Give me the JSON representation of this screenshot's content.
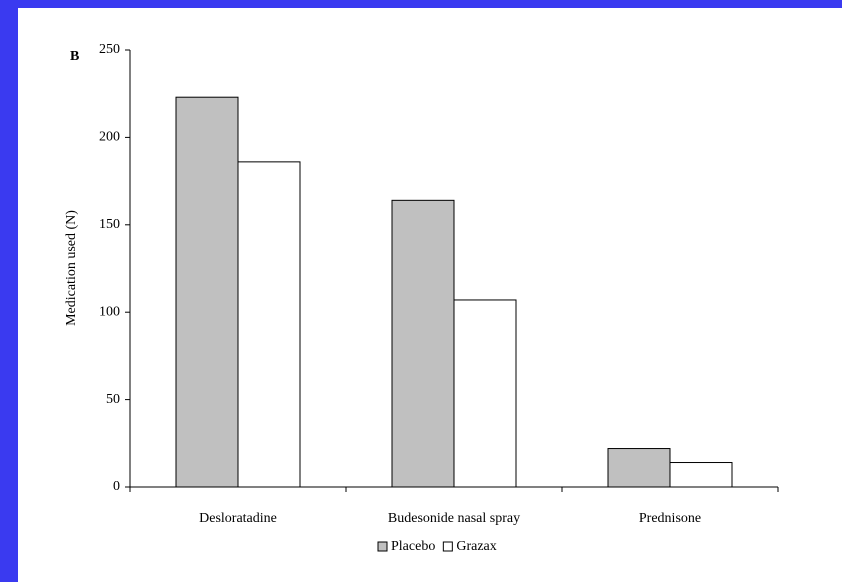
{
  "chart_data": {
    "type": "bar",
    "panel_label": "B",
    "ylabel": "Medication used (N)",
    "categories": [
      "Desloratadine",
      "Budesonide nasal spray",
      "Prednisone"
    ],
    "series": [
      {
        "name": "Placebo",
        "color": "#c0c0c0",
        "values": [
          223,
          164,
          22
        ]
      },
      {
        "name": "Grazax",
        "color": "#ffffff",
        "values": [
          186,
          107,
          14
        ]
      }
    ],
    "ylim": [
      0,
      250
    ],
    "yticks": [
      0,
      50,
      100,
      150,
      200,
      250
    ],
    "legend": "bottom"
  }
}
